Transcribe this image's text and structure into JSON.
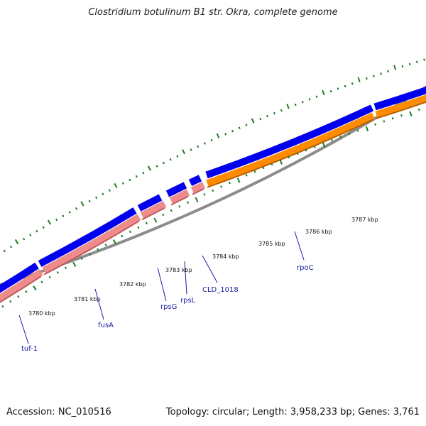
{
  "title": "Clostridium botulinum B1 str. Okra, complete genome",
  "footer": {
    "accession": "Accession: NC_010516",
    "summary": "Topology: circular; Length: 3,958,233 bp; Genes: 3,761"
  },
  "colors": {
    "backbone": "#8c8c8c",
    "cds_forward": "#0000ee",
    "gene_pink": "#ee8c8c",
    "gene_orange": "#ff8c00",
    "gc_skew": "#1e7b1e",
    "label": "#1a1aa6"
  },
  "scale": {
    "unit": "kbp",
    "ticks": [
      {
        "label": "3780 kbp"
      },
      {
        "label": "3781 kbp"
      },
      {
        "label": "3782 kbp"
      },
      {
        "label": "3783 kbp"
      },
      {
        "label": "3784 kbp"
      },
      {
        "label": "3785 kbp"
      },
      {
        "label": "3786 kbp"
      },
      {
        "label": "3787 kbp"
      }
    ]
  },
  "genes": [
    {
      "name": "tuf-1"
    },
    {
      "name": "fusA"
    },
    {
      "name": "rpsG"
    },
    {
      "name": "rpsL"
    },
    {
      "name": "CLD_1018"
    },
    {
      "name": "rpoC"
    }
  ]
}
